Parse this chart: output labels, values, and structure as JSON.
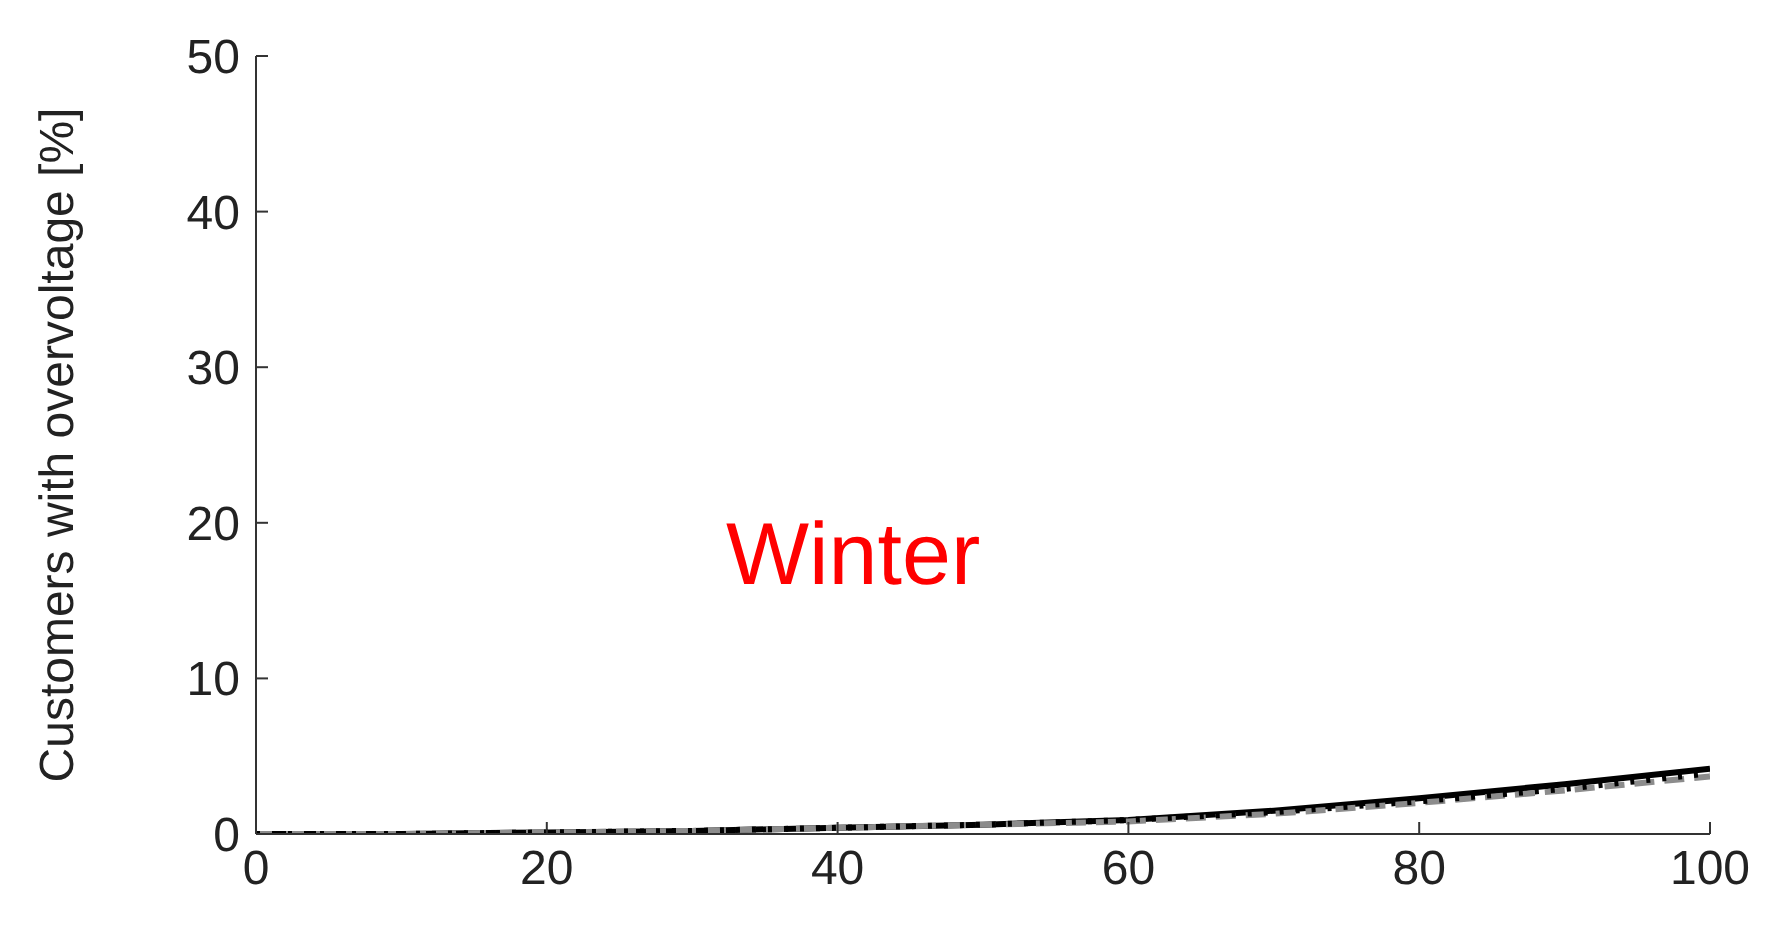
{
  "chart_data": {
    "type": "line",
    "ylabel": "Customers with overvoltage [%]",
    "annotations": [
      "Winter"
    ],
    "x": [
      0,
      10,
      20,
      30,
      40,
      50,
      60,
      70,
      80,
      90,
      100
    ],
    "series": [
      {
        "color": "#000000",
        "line_style": "solid",
        "values": [
          0,
          0,
          0.1,
          0.2,
          0.4,
          0.6,
          0.9,
          1.5,
          2.3,
          3.2,
          4.2
        ]
      },
      {
        "color": "#8c8c8c",
        "line_style": "dashed",
        "values": [
          0,
          0,
          0.1,
          0.2,
          0.4,
          0.6,
          0.8,
          1.3,
          2.0,
          2.8,
          3.7
        ]
      },
      {
        "color": "#000000",
        "line_style": "dotted",
        "values": [
          0,
          0,
          0.1,
          0.2,
          0.4,
          0.6,
          0.9,
          1.4,
          2.1,
          2.9,
          3.9
        ]
      }
    ],
    "xlim": [
      0,
      100
    ],
    "xticks": [
      0,
      20,
      40,
      60,
      80,
      100
    ],
    "ylim": [
      0,
      50
    ],
    "yticks": [
      0,
      10,
      20,
      30,
      40,
      50
    ],
    "grid": false,
    "legend": false,
    "marker": "none"
  }
}
